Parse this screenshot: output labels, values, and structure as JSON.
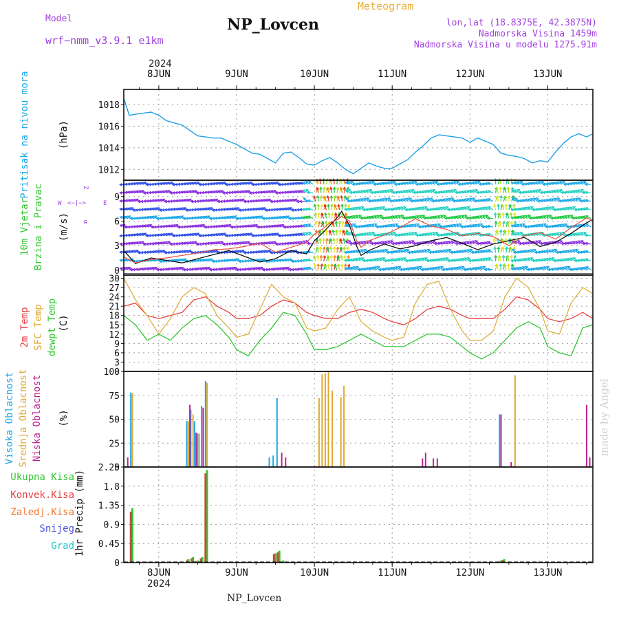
{
  "header": {
    "model_label": "Model",
    "model_name": "wrf−nmm_v3.9.1 e1km",
    "station": "NP_Lovcen",
    "meteogram_label": "Meteogram",
    "coords": "lon,lat (18.8375E, 42.3875N)",
    "altitude": "Nadmorska Visina 1459m",
    "model_altitude": "Nadmorska Visina u modelu 1275.91m",
    "year_top": "2024",
    "footer_station": "NP_Lovcen",
    "watermark": "made by Angel"
  },
  "time_axis": {
    "labels": [
      "8JUN",
      "9JUN",
      "10JUN",
      "11JUN",
      "12JUN",
      "13JUN"
    ],
    "label_positions_day": [
      1,
      2,
      3,
      4,
      5,
      6
    ],
    "year_label": "2024",
    "start_day": 0.55,
    "end_day": 6.58
  },
  "chart_data": [
    {
      "id": "pressure",
      "type": "line",
      "ylabel": "Pritisak na nivou mora",
      "unit": "(hPa)",
      "ylim": [
        1011,
        1019.4
      ],
      "yticks": [
        1012,
        1014,
        1016,
        1018
      ],
      "color": "#1ea0e6",
      "x": [
        0.55,
        0.62,
        0.7,
        0.8,
        0.9,
        1.0,
        1.1,
        1.2,
        1.3,
        1.4,
        1.5,
        1.6,
        1.7,
        1.8,
        1.9,
        2.0,
        2.1,
        2.2,
        2.3,
        2.4,
        2.5,
        2.6,
        2.7,
        2.8,
        2.9,
        3.0,
        3.1,
        3.2,
        3.3,
        3.4,
        3.5,
        3.6,
        3.7,
        3.8,
        3.9,
        4.0,
        4.1,
        4.2,
        4.3,
        4.4,
        4.5,
        4.6,
        4.7,
        4.8,
        4.9,
        5.0,
        5.1,
        5.2,
        5.3,
        5.4,
        5.5,
        5.6,
        5.7,
        5.8,
        5.9,
        6.0,
        6.1,
        6.2,
        6.3,
        6.4,
        6.5,
        6.58
      ],
      "values": [
        1018.6,
        1017.0,
        1017.1,
        1017.2,
        1017.3,
        1017.0,
        1016.5,
        1016.3,
        1016.1,
        1015.6,
        1015.1,
        1015.0,
        1014.9,
        1014.9,
        1014.6,
        1014.3,
        1013.9,
        1013.5,
        1013.4,
        1013.0,
        1012.6,
        1013.5,
        1013.6,
        1013.1,
        1012.5,
        1012.4,
        1012.8,
        1013.1,
        1012.6,
        1012.0,
        1011.6,
        1012.1,
        1012.6,
        1012.3,
        1012.1,
        1012.1,
        1012.5,
        1012.9,
        1013.6,
        1014.2,
        1014.9,
        1015.2,
        1015.1,
        1015.0,
        1014.9,
        1014.5,
        1014.9,
        1014.6,
        1014.3,
        1013.5,
        1013.3,
        1013.2,
        1013.0,
        1012.6,
        1012.8,
        1012.7,
        1013.6,
        1014.4,
        1015.0,
        1015.3,
        1015.0,
        1015.3
      ]
    },
    {
      "id": "wind",
      "type": "line",
      "ylabel": "10m Vjetar",
      "ylabel2": "Brzina i Pravac",
      "unit": "(m/s)",
      "compass": [
        "Z",
        "W",
        "E",
        "α",
        "<−|−>"
      ],
      "ylim": [
        -0.6,
        11
      ],
      "yticks": [
        0,
        3,
        6,
        9
      ],
      "series": [
        {
          "name": "speed",
          "color": "#111111",
          "x": [
            0.55,
            0.7,
            0.9,
            1.1,
            1.3,
            1.5,
            1.7,
            1.9,
            2.1,
            2.3,
            2.5,
            2.7,
            2.9,
            3.0,
            3.1,
            3.2,
            3.3,
            3.35,
            3.45,
            3.55,
            3.6,
            3.7,
            3.9,
            4.1,
            4.3,
            4.5,
            4.7,
            4.9,
            5.1,
            5.3,
            5.5,
            5.7,
            5.9,
            6.1,
            6.3,
            6.5,
            6.58
          ],
          "values": [
            2.4,
            0.8,
            1.5,
            1.2,
            0.9,
            1.4,
            1.9,
            2.4,
            1.7,
            1.0,
            1.4,
            2.4,
            2.0,
            3.6,
            4.5,
            5.5,
            6.5,
            7.2,
            5.5,
            2.8,
            1.8,
            2.4,
            3.2,
            2.6,
            3.0,
            3.6,
            4.0,
            3.3,
            2.5,
            3.2,
            3.6,
            4.0,
            2.9,
            3.4,
            4.5,
            5.8,
            6.2
          ]
        },
        {
          "name": "gust",
          "color": "#e05040",
          "x": [
            0.55,
            0.7,
            0.9,
            1.1,
            1.3,
            1.5,
            1.7,
            1.9,
            2.1,
            2.3,
            2.5,
            2.7,
            2.9,
            3.0,
            3.1,
            3.2,
            3.3,
            3.35,
            3.45,
            3.55,
            3.6,
            3.7,
            3.9,
            4.1,
            4.3,
            4.5,
            4.7,
            4.9,
            5.1,
            5.3,
            5.5,
            5.7,
            5.9,
            6.1,
            6.3,
            6.5,
            6.58
          ],
          "values": [
            1.6,
            0.9,
            1.3,
            1.5,
            1.8,
            2.1,
            2.5,
            2.6,
            2.9,
            3.3,
            2.2,
            2.8,
            3.4,
            4.4,
            5.0,
            5.8,
            6.2,
            6.6,
            6.0,
            3.5,
            2.8,
            3.6,
            4.3,
            5.2,
            6.3,
            5.4,
            5.0,
            4.2,
            4.5,
            4.1,
            3.0,
            4.2,
            4.6,
            3.8,
            5.2,
            6.4,
            6.0
          ]
        }
      ],
      "arrow_colors": [
        "#3050e8",
        "#8a2ee0",
        "#1aa8e8",
        "#20d0c0",
        "#20c840",
        "#a0e020",
        "#e8e020",
        "#f08020",
        "#e83020"
      ]
    },
    {
      "id": "temperature",
      "type": "line",
      "ylabel": "2m Temp",
      "ylabel2": "SFC Temp",
      "ylabel3": "dewpt Temp",
      "unit": "(C)",
      "ylim": [
        0,
        31
      ],
      "yticks": [
        0,
        3,
        6,
        9,
        12,
        15,
        18,
        21,
        24,
        27,
        30
      ],
      "series": [
        {
          "name": "2m Temp",
          "color": "#e84040",
          "x": [
            0.55,
            0.7,
            0.85,
            1.0,
            1.15,
            1.3,
            1.45,
            1.6,
            1.75,
            1.9,
            2.0,
            2.15,
            2.3,
            2.45,
            2.6,
            2.75,
            2.9,
            3.0,
            3.15,
            3.3,
            3.45,
            3.6,
            3.75,
            3.9,
            4.0,
            4.15,
            4.3,
            4.45,
            4.6,
            4.75,
            4.9,
            5.0,
            5.15,
            5.3,
            5.45,
            5.6,
            5.75,
            5.9,
            6.0,
            6.15,
            6.3,
            6.45,
            6.58
          ],
          "values": [
            21,
            22,
            18,
            17,
            18,
            19,
            23,
            24,
            21,
            19,
            17,
            17,
            18,
            21,
            23,
            22,
            19,
            18,
            17,
            17,
            19,
            20,
            19,
            17,
            16,
            15,
            17,
            20,
            21,
            20,
            18,
            17,
            17,
            17,
            20,
            24,
            23,
            20,
            17,
            16,
            17,
            19,
            17
          ]
        },
        {
          "name": "SFC Temp",
          "color": "#e0b040",
          "x": [
            0.55,
            0.7,
            0.85,
            1.0,
            1.15,
            1.3,
            1.45,
            1.6,
            1.75,
            1.9,
            2.0,
            2.15,
            2.3,
            2.45,
            2.6,
            2.75,
            2.9,
            3.0,
            3.15,
            3.3,
            3.45,
            3.6,
            3.75,
            3.9,
            4.0,
            4.15,
            4.3,
            4.45,
            4.6,
            4.75,
            4.9,
            5.0,
            5.15,
            5.3,
            5.45,
            5.6,
            5.75,
            5.9,
            6.0,
            6.15,
            6.3,
            6.45,
            6.58
          ],
          "values": [
            30,
            23,
            18,
            12,
            17,
            24,
            27,
            25,
            18,
            14,
            11,
            12,
            20,
            28,
            24,
            22,
            14,
            13,
            14,
            20,
            24,
            16,
            13,
            11,
            10,
            11,
            22,
            28,
            29,
            20,
            13,
            10,
            10,
            13,
            24,
            30,
            27,
            20,
            13,
            12,
            22,
            27,
            25
          ]
        },
        {
          "name": "dewpt Temp",
          "color": "#30c830",
          "x": [
            0.55,
            0.7,
            0.85,
            1.0,
            1.15,
            1.3,
            1.45,
            1.6,
            1.75,
            1.9,
            2.0,
            2.15,
            2.3,
            2.45,
            2.6,
            2.75,
            2.9,
            3.0,
            3.15,
            3.3,
            3.45,
            3.6,
            3.75,
            3.9,
            4.0,
            4.15,
            4.3,
            4.45,
            4.6,
            4.75,
            4.9,
            5.0,
            5.15,
            5.3,
            5.45,
            5.6,
            5.75,
            5.9,
            6.0,
            6.15,
            6.3,
            6.45,
            6.58
          ],
          "values": [
            18,
            15,
            10,
            12,
            10,
            14,
            17,
            18,
            15,
            11,
            7,
            5,
            10,
            14,
            19,
            18,
            12,
            7,
            7,
            8,
            10,
            12,
            10,
            8,
            8,
            8,
            10,
            12,
            12,
            11,
            8,
            6,
            4,
            6,
            10,
            14,
            16,
            14,
            8,
            6,
            5,
            14,
            15
          ]
        }
      ]
    },
    {
      "id": "clouds",
      "type": "bar",
      "ylabel": "Visoka Oblacnost",
      "ylabel2": "Srednja Oblacnost",
      "ylabel3": "Niska Oblacnost",
      "unit": "(%)",
      "ylim": [
        0,
        100
      ],
      "yticks": [
        0,
        25,
        50,
        75,
        100
      ],
      "series": [
        {
          "name": "Visoka Oblacnost",
          "color": "#1aa8e8",
          "x": [
            0.64,
            1.36,
            1.41,
            1.46,
            1.5,
            1.55,
            1.6,
            2.42,
            2.47,
            2.52,
            5.38
          ],
          "values": [
            78,
            48,
            60,
            48,
            35,
            64,
            90,
            10,
            12,
            72,
            55
          ]
        },
        {
          "name": "Srednja Oblacnost",
          "color": "#e0a830",
          "x": [
            0.66,
            1.38,
            1.44,
            1.52,
            1.62,
            3.06,
            3.1,
            3.14,
            3.18,
            3.23,
            3.34,
            3.38,
            5.58
          ],
          "values": [
            77,
            48,
            55,
            35,
            88,
            72,
            97,
            98,
            100,
            80,
            73,
            85,
            96
          ]
        },
        {
          "name": "Niska Oblacnost",
          "color": "#c02090",
          "x": [
            0.6,
            1.4,
            1.48,
            1.57,
            2.58,
            2.63,
            4.39,
            4.43,
            4.53,
            4.58,
            5.4,
            5.53,
            6.5,
            6.54
          ],
          "values": [
            10,
            65,
            36,
            62,
            15,
            10,
            9,
            15,
            9,
            9,
            55,
            5,
            65,
            10
          ]
        }
      ]
    },
    {
      "id": "precip",
      "type": "bar",
      "ylabel": "1hr Precip",
      "unit": "(mm)",
      "legend": [
        "Ukupna Kisa",
        "Konvek.Kisa",
        "Zaledj.Kisa",
        "Snijeg",
        "Grad"
      ],
      "legend_colors": [
        "#30c830",
        "#e84040",
        "#f07830",
        "#5050e0",
        "#20c8c8"
      ],
      "ylim": [
        0,
        2.25
      ],
      "yticks": [
        0,
        0.45,
        0.9,
        1.35,
        1.8,
        2.25
      ],
      "series": [
        {
          "name": "Ukupna Kisa",
          "color": "#30c830",
          "x": [
            0.66,
            1.38,
            1.44,
            1.5,
            1.56,
            1.62,
            2.5,
            2.55,
            2.6,
            5.4,
            5.44
          ],
          "values": [
            1.28,
            0.08,
            0.13,
            0.05,
            0.13,
            2.18,
            0.22,
            0.28,
            0.05,
            0.05,
            0.08
          ]
        },
        {
          "name": "Konvek.Kisa",
          "color": "#c0503a",
          "x": [
            0.64,
            1.36,
            1.42,
            1.48,
            1.54,
            1.6,
            2.48,
            2.53,
            5.38,
            5.42
          ],
          "values": [
            1.2,
            0.05,
            0.1,
            0.03,
            0.1,
            2.1,
            0.2,
            0.24,
            0.03,
            0.06
          ]
        }
      ]
    }
  ]
}
